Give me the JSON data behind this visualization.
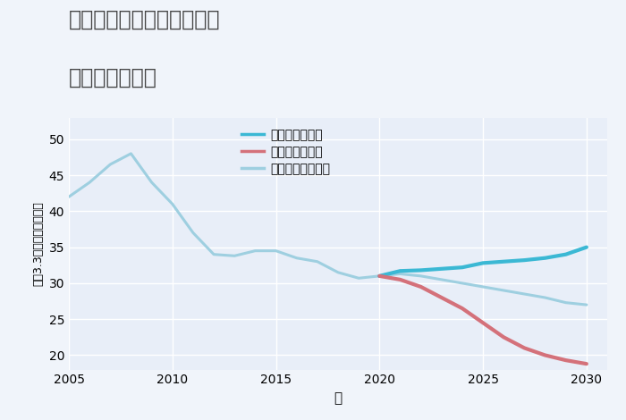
{
  "title_line1": "埼玉県児玉郡上里町五明の",
  "title_line2": "土地の価格推移",
  "xlabel": "年",
  "ylabel": "平（3.3㎡）単価（万円）",
  "ylim": [
    18,
    53
  ],
  "xlim": [
    2005,
    2031
  ],
  "yticks": [
    20,
    25,
    30,
    35,
    40,
    45,
    50
  ],
  "xticks": [
    2005,
    2010,
    2015,
    2020,
    2025,
    2030
  ],
  "background_color": "#f0f4fa",
  "plot_bg_color": "#e8eef8",
  "grid_color": "#ffffff",
  "good_color": "#3bb8d4",
  "bad_color": "#d4717a",
  "normal_color": "#9ecfe0",
  "hist_color": "#9ecfe0",
  "good_label": "グッドシナリオ",
  "bad_label": "バッドシナリオ",
  "normal_label": "ノーマルシナリオ",
  "historical_years": [
    2005,
    2006,
    2007,
    2008,
    2009,
    2010,
    2011,
    2012,
    2013,
    2014,
    2015,
    2016,
    2017,
    2018,
    2019,
    2020,
    2021
  ],
  "historical_values": [
    42.0,
    44.0,
    46.5,
    48.0,
    44.0,
    41.0,
    37.0,
    34.0,
    33.8,
    34.5,
    34.5,
    33.5,
    33.0,
    31.5,
    30.7,
    31.0,
    31.7
  ],
  "good_years": [
    2020,
    2021,
    2022,
    2023,
    2024,
    2025,
    2026,
    2027,
    2028,
    2029,
    2030
  ],
  "good_values": [
    31.0,
    31.7,
    31.8,
    32.0,
    32.2,
    32.8,
    33.0,
    33.2,
    33.5,
    34.0,
    35.0
  ],
  "bad_years": [
    2020,
    2021,
    2022,
    2023,
    2024,
    2025,
    2026,
    2027,
    2028,
    2029,
    2030
  ],
  "bad_values": [
    31.0,
    30.5,
    29.5,
    28.0,
    26.5,
    24.5,
    22.5,
    21.0,
    20.0,
    19.3,
    18.8
  ],
  "normal_years": [
    2020,
    2021,
    2022,
    2023,
    2024,
    2025,
    2026,
    2027,
    2028,
    2029,
    2030
  ],
  "normal_values": [
    31.0,
    31.3,
    31.0,
    30.5,
    30.0,
    29.5,
    29.0,
    28.5,
    28.0,
    27.3,
    27.0
  ]
}
